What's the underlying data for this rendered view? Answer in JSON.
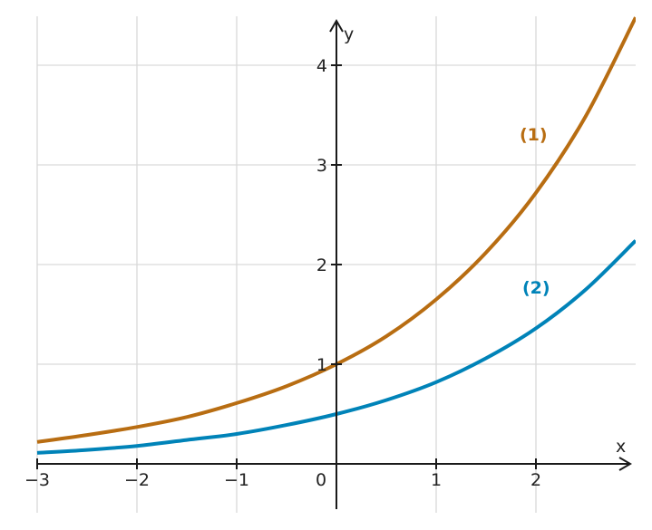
{
  "chart_data": {
    "type": "line",
    "title": "",
    "xlabel": "x",
    "ylabel": "y",
    "xlim": [
      -3,
      3
    ],
    "ylim": [
      -0.45,
      4.5
    ],
    "grid": true,
    "x_ticks": [
      -3,
      -2,
      -1,
      0,
      1,
      2
    ],
    "x_tick_labels": [
      "−3",
      "−2",
      "−1",
      "0",
      "1",
      "2"
    ],
    "y_ticks": [
      1,
      2,
      3,
      4
    ],
    "y_tick_labels": [
      "1",
      "2",
      "3",
      "4"
    ],
    "series": [
      {
        "label": "(1)",
        "color": "#b86d12",
        "x": [
          -3,
          -2.5,
          -2,
          -1.5,
          -1,
          -0.5,
          0,
          0.5,
          1,
          1.5,
          2,
          2.5,
          3
        ],
        "y": [
          0.22,
          0.29,
          0.37,
          0.47,
          0.61,
          0.78,
          1.0,
          1.28,
          1.65,
          2.12,
          2.72,
          3.49,
          4.48
        ]
      },
      {
        "label": "(2)",
        "color": "#0083b8",
        "x": [
          -3,
          -2.5,
          -2,
          -1.5,
          -1,
          -0.5,
          0,
          0.5,
          1,
          1.5,
          2,
          2.5,
          3
        ],
        "y": [
          0.11,
          0.14,
          0.18,
          0.24,
          0.3,
          0.39,
          0.5,
          0.64,
          0.82,
          1.06,
          1.36,
          1.75,
          2.24
        ]
      }
    ]
  }
}
